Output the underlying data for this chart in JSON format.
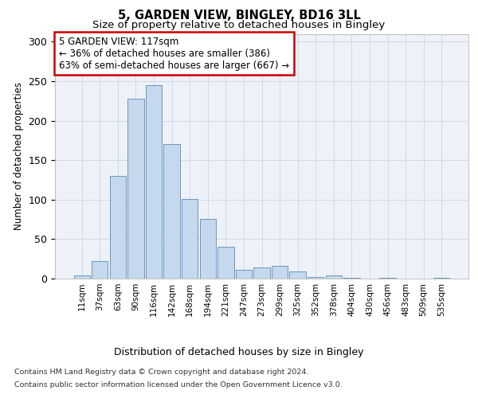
{
  "title1": "5, GARDEN VIEW, BINGLEY, BD16 3LL",
  "title2": "Size of property relative to detached houses in Bingley",
  "xlabel": "Distribution of detached houses by size in Bingley",
  "ylabel": "Number of detached properties",
  "categories": [
    "11sqm",
    "37sqm",
    "63sqm",
    "90sqm",
    "116sqm",
    "142sqm",
    "168sqm",
    "194sqm",
    "221sqm",
    "247sqm",
    "273sqm",
    "299sqm",
    "325sqm",
    "352sqm",
    "378sqm",
    "404sqm",
    "430sqm",
    "456sqm",
    "483sqm",
    "509sqm",
    "535sqm"
  ],
  "values": [
    4,
    22,
    130,
    228,
    245,
    170,
    101,
    76,
    40,
    11,
    14,
    16,
    9,
    2,
    4,
    1,
    0,
    1,
    0,
    0,
    1
  ],
  "bar_color": "#c5d8ed",
  "bar_edge_color": "#5a8ab5",
  "highlight_index": 4,
  "annotation_box_text": "5 GARDEN VIEW: 117sqm\n← 36% of detached houses are smaller (386)\n63% of semi-detached houses are larger (667) →",
  "annotation_box_color": "#ffffff",
  "annotation_box_edge_color": "#cc0000",
  "footnote1": "Contains HM Land Registry data © Crown copyright and database right 2024.",
  "footnote2": "Contains public sector information licensed under the Open Government Licence v3.0.",
  "ylim": [
    0,
    310
  ],
  "yticks": [
    0,
    50,
    100,
    150,
    200,
    250,
    300
  ],
  "grid_color": "#d0d8e8",
  "background_color": "#eef2f8",
  "fig_bg_color": "#ffffff"
}
